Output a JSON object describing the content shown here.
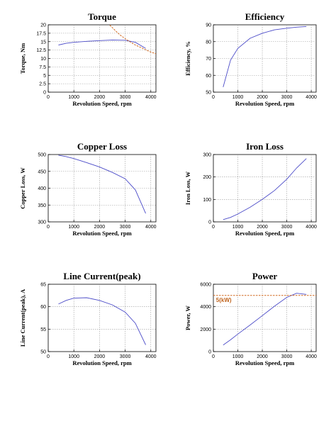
{
  "colors": {
    "series": "#4b4bc8",
    "reference": "#d2691e",
    "grid": "#9a9a9a",
    "axis": "#000000"
  },
  "chart_data": [
    {
      "id": "torque",
      "type": "line",
      "title": "Torque",
      "xlabel": "Revolution Speed, rpm",
      "ylabel": "Torque, Nm",
      "xlim": [
        0,
        4200
      ],
      "ylim": [
        0,
        20
      ],
      "xticks": [
        0,
        1000,
        2000,
        3000,
        4000
      ],
      "yticks": [
        0,
        2.5,
        5,
        7.5,
        10,
        12.5,
        15,
        17.5,
        20
      ],
      "ytick_labels": [
        "0",
        "2.5",
        "5",
        "7.5",
        "10",
        "12.5",
        "15",
        "17.5",
        "20"
      ],
      "grid": true,
      "series": [
        {
          "style": "solid",
          "x": [
            400,
            700,
            1000,
            1500,
            2000,
            2500,
            3000,
            3400,
            3800
          ],
          "y": [
            14.0,
            14.5,
            14.8,
            15.1,
            15.3,
            15.5,
            15.4,
            14.8,
            13.0
          ]
        },
        {
          "style": "dashed",
          "x": [
            2400,
            2600,
            2800,
            3000,
            3200,
            3400,
            3600,
            3800,
            4000,
            4200
          ],
          "y": [
            19.9,
            18.4,
            17.0,
            15.9,
            14.9,
            14.0,
            13.3,
            12.6,
            11.9,
            11.4
          ]
        }
      ]
    },
    {
      "id": "efficiency",
      "type": "line",
      "title": "Efficiency",
      "xlabel": "Revolution Speed, rpm",
      "ylabel": "Efficiency, %",
      "xlim": [
        0,
        4200
      ],
      "ylim": [
        50,
        90
      ],
      "xticks": [
        0,
        1000,
        2000,
        3000,
        4000
      ],
      "yticks": [
        50,
        60,
        70,
        80,
        90
      ],
      "ytick_labels": [
        "50",
        "60",
        "70",
        "80",
        "90"
      ],
      "grid": true,
      "series": [
        {
          "style": "solid",
          "x": [
            400,
            700,
            1000,
            1500,
            2000,
            2500,
            3000,
            3400,
            3800
          ],
          "y": [
            53,
            69,
            76,
            82,
            85,
            87,
            88,
            88.6,
            89
          ]
        }
      ]
    },
    {
      "id": "copper-loss",
      "type": "line",
      "title": "Copper Loss",
      "xlabel": "Revolution Speed, rpm",
      "ylabel": "Copper Loss, W",
      "xlim": [
        0,
        4200
      ],
      "ylim": [
        300,
        500
      ],
      "xticks": [
        0,
        1000,
        2000,
        3000,
        4000
      ],
      "yticks": [
        300,
        350,
        400,
        450,
        500
      ],
      "ytick_labels": [
        "300",
        "350",
        "400",
        "450",
        "500"
      ],
      "grid": true,
      "series": [
        {
          "style": "solid",
          "x": [
            400,
            700,
            1000,
            1500,
            2000,
            2500,
            3000,
            3400,
            3800
          ],
          "y": [
            498,
            494,
            488,
            476,
            463,
            447,
            428,
            395,
            325
          ]
        }
      ]
    },
    {
      "id": "iron-loss",
      "type": "line",
      "title": "Iron Loss",
      "xlabel": "Revolution Speed, rpm",
      "ylabel": "Iron Loss, W",
      "xlim": [
        0,
        4200
      ],
      "ylim": [
        0,
        300
      ],
      "xticks": [
        0,
        1000,
        2000,
        3000,
        4000
      ],
      "yticks": [
        0,
        100,
        200,
        300
      ],
      "ytick_labels": [
        "0",
        "100",
        "200",
        "300"
      ],
      "grid": true,
      "series": [
        {
          "style": "solid",
          "x": [
            400,
            700,
            1000,
            1500,
            2000,
            2500,
            3000,
            3400,
            3800
          ],
          "y": [
            10,
            20,
            35,
            65,
            100,
            140,
            190,
            240,
            282
          ]
        }
      ]
    },
    {
      "id": "line-current",
      "type": "line",
      "title": "Line Current(peak)",
      "xlabel": "Revolution Speed, rpm",
      "ylabel": "Line Current(peak), A",
      "xlim": [
        0,
        4200
      ],
      "ylim": [
        50,
        65
      ],
      "xticks": [
        0,
        1000,
        2000,
        3000,
        4000
      ],
      "yticks": [
        50,
        55,
        60,
        65
      ],
      "ytick_labels": [
        "50",
        "55",
        "60",
        "65"
      ],
      "grid": true,
      "series": [
        {
          "style": "solid",
          "x": [
            400,
            700,
            1000,
            1500,
            2000,
            2500,
            3000,
            3400,
            3800
          ],
          "y": [
            60.6,
            61.4,
            61.9,
            62.0,
            61.4,
            60.4,
            58.8,
            56.3,
            51.5
          ]
        }
      ]
    },
    {
      "id": "power",
      "type": "line",
      "title": "Power",
      "xlabel": "Revolution Speed, rpm",
      "ylabel": "Power, W",
      "xlim": [
        0,
        4200
      ],
      "ylim": [
        0,
        6000
      ],
      "xticks": [
        0,
        1000,
        2000,
        3000,
        4000
      ],
      "yticks": [
        0,
        2000,
        4000,
        6000
      ],
      "ytick_labels": [
        "0",
        "2000",
        "4000",
        "6000"
      ],
      "grid": true,
      "series": [
        {
          "style": "solid",
          "x": [
            400,
            700,
            1000,
            1500,
            2000,
            2500,
            3000,
            3400,
            3800
          ],
          "y": [
            590,
            1050,
            1560,
            2370,
            3200,
            4050,
            4830,
            5200,
            5100
          ]
        },
        {
          "style": "dashed",
          "x": [
            0,
            4200
          ],
          "y": [
            5000,
            5000
          ]
        }
      ],
      "annotations": [
        {
          "text": "5(kW)",
          "x": 80,
          "y": 4600
        }
      ]
    }
  ]
}
